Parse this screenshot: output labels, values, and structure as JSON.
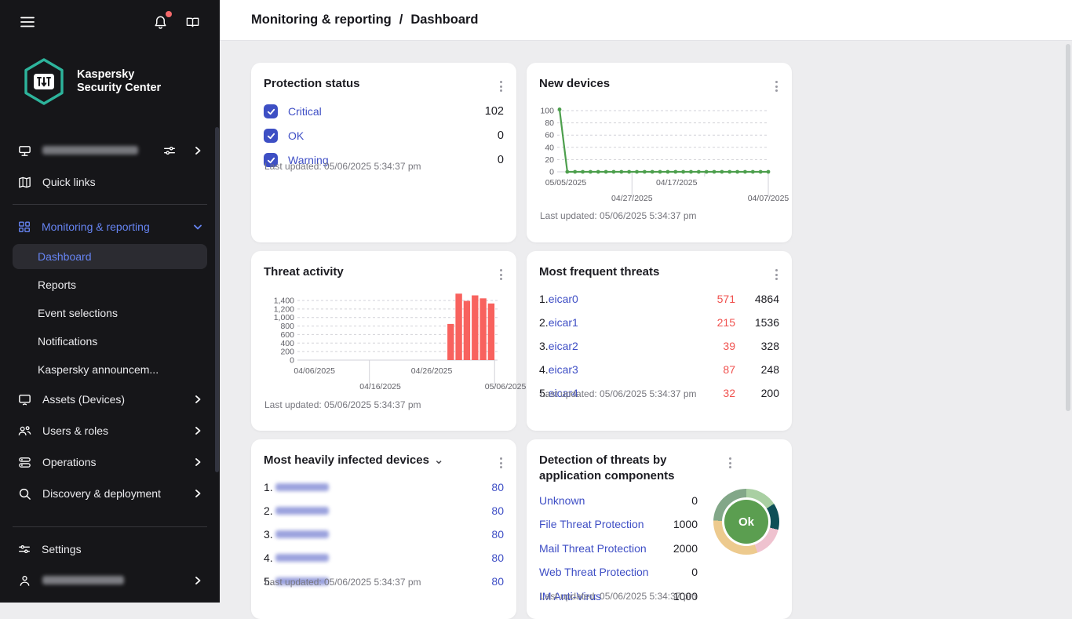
{
  "colors": {
    "accent_blue": "#6684f2",
    "link_indigo": "#3e4ec5",
    "alert_red": "#f0524f",
    "bar_red": "#f8625e",
    "line_green": "#4d9f4d",
    "brand_teal": "#2db49c",
    "sidebar_bg": "#161619",
    "content_bg": "#ededef",
    "donut_center": "#5b9e50"
  },
  "sidebar": {
    "brand_line1": "Kaspersky",
    "brand_line2": "Security Center",
    "quick_links_label": "Quick links",
    "monitoring_label": "Monitoring & reporting",
    "dashboard_label": "Dashboard",
    "reports_label": "Reports",
    "event_selections_label": "Event selections",
    "notifications_label": "Notifications",
    "announcements_label": "Kaspersky announcem...",
    "assets_label": "Assets (Devices)",
    "users_roles_label": "Users & roles",
    "operations_label": "Operations",
    "discovery_label": "Discovery & deployment",
    "settings_label": "Settings"
  },
  "header": {
    "breadcrumb_section": "Monitoring & reporting",
    "breadcrumb_sep": "/",
    "breadcrumb_page": "Dashboard"
  },
  "common": {
    "last_updated": "Last updated: 05/06/2025 5:34:37 pm"
  },
  "cards": {
    "protection_status": {
      "title": "Protection status",
      "rows": [
        {
          "label": "Critical",
          "value": "102"
        },
        {
          "label": "OK",
          "value": "0"
        },
        {
          "label": "Warning",
          "value": "0"
        }
      ]
    },
    "new_devices": {
      "title": "New devices"
    },
    "threat_activity": {
      "title": "Threat activity"
    },
    "most_frequent_threats": {
      "title": "Most frequent threats",
      "rows": [
        {
          "rank": "1.",
          "name": "eicar0",
          "red": "571",
          "black": "4864"
        },
        {
          "rank": "2.",
          "name": "eicar1",
          "red": "215",
          "black": "1536"
        },
        {
          "rank": "3.",
          "name": "eicar2",
          "red": "39",
          "black": "328"
        },
        {
          "rank": "4.",
          "name": "eicar3",
          "red": "87",
          "black": "248"
        },
        {
          "rank": "5.",
          "name": "eicar4",
          "red": "32",
          "black": "200"
        }
      ]
    },
    "most_heavily_infected": {
      "title": "Most heavily infected devices",
      "rows": [
        {
          "rank": "1.",
          "value": "80"
        },
        {
          "rank": "2.",
          "value": "80"
        },
        {
          "rank": "3.",
          "value": "80"
        },
        {
          "rank": "4.",
          "value": "80"
        },
        {
          "rank": "5.",
          "value": "80"
        }
      ]
    },
    "detection_components": {
      "title": "Detection of threats by application components",
      "rows": [
        {
          "label": "Unknown",
          "value": "0"
        },
        {
          "label": "File Threat Protection",
          "value": "1000"
        },
        {
          "label": "Mail Threat Protection",
          "value": "2000"
        },
        {
          "label": "Web Threat Protection",
          "value": "0"
        },
        {
          "label": "IM Anti-Virus",
          "value": "1000"
        }
      ],
      "donut_label": "Ok"
    }
  },
  "chart_data": [
    {
      "type": "line",
      "title": "New devices",
      "ylim": [
        0,
        100
      ],
      "yticks": [
        0,
        20,
        40,
        60,
        80,
        100
      ],
      "xticks": [
        "05/05/2025",
        "04/27/2025",
        "04/17/2025",
        "04/07/2025"
      ],
      "x_axis_note": "dates run newest (left) to oldest (right)",
      "values": [
        102,
        0,
        0,
        0,
        0,
        0,
        0,
        0,
        0,
        0,
        0,
        0,
        0,
        0,
        0,
        0,
        0,
        0,
        0,
        0,
        0,
        0,
        0,
        0,
        0,
        0,
        0,
        0
      ],
      "line_color": "#4d9f4d",
      "grid": true,
      "legend": false
    },
    {
      "type": "bar",
      "title": "Threat activity",
      "ylim": [
        0,
        1400
      ],
      "yticks": [
        0,
        200,
        400,
        600,
        800,
        1000,
        1200,
        1400
      ],
      "xticks": [
        "04/06/2025",
        "04/16/2025",
        "04/26/2025",
        "05/06/2025"
      ],
      "bars": [
        {
          "xf": 0.763,
          "value": 850
        },
        {
          "xf": 0.804,
          "value": 1560
        },
        {
          "xf": 0.845,
          "value": 1390
        },
        {
          "xf": 0.886,
          "value": 1520
        },
        {
          "xf": 0.927,
          "value": 1450
        },
        {
          "xf": 0.968,
          "value": 1330
        }
      ],
      "bar_color": "#f8625e",
      "grid": true,
      "legend": false
    },
    {
      "type": "pie",
      "title": "Detection of threats by application components",
      "center_label": "Ok",
      "center_color": "#5b9e50",
      "segments": [
        {
          "color": "#a9cfa2",
          "from": 0,
          "to": 57
        },
        {
          "color": "#0e4f57",
          "from": 57,
          "to": 104
        },
        {
          "color": "#efc2cf",
          "from": 104,
          "to": 160
        },
        {
          "color": "#edca8e",
          "from": 160,
          "to": 272
        },
        {
          "color": "#82a788",
          "from": 272,
          "to": 360
        }
      ]
    }
  ]
}
